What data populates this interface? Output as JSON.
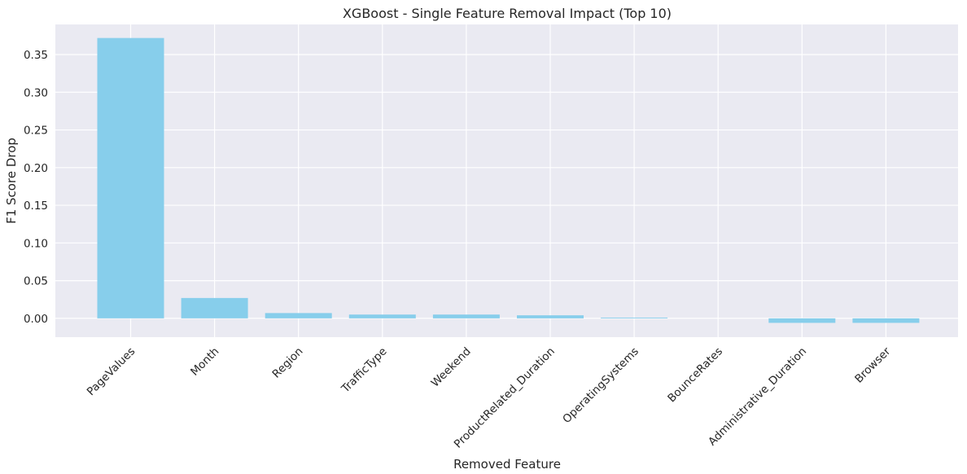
{
  "chart_data": {
    "type": "bar",
    "title": "XGBoost - Single Feature Removal Impact (Top 10)",
    "xlabel": "Removed Feature",
    "ylabel": "F1 Score Drop",
    "categories": [
      "PageValues",
      "Month",
      "Region",
      "TrafficType",
      "Weekend",
      "ProductRelated_Duration",
      "OperatingSystems",
      "BounceRates",
      "Administrative_Duration",
      "Browser"
    ],
    "values": [
      0.372,
      0.027,
      0.007,
      0.005,
      0.005,
      0.004,
      0.001,
      0.0,
      -0.006,
      -0.006
    ],
    "ylim": [
      -0.025,
      0.39
    ],
    "yticks": [
      0.0,
      0.05,
      0.1,
      0.15,
      0.2,
      0.25,
      0.3,
      0.35
    ],
    "ytick_labels": [
      "0.00",
      "0.05",
      "0.10",
      "0.15",
      "0.20",
      "0.25",
      "0.30",
      "0.35"
    ],
    "grid": true,
    "bar_color": "#87CEEB",
    "background_color": "#EAEAF2",
    "grid_color": "#FFFFFF"
  }
}
